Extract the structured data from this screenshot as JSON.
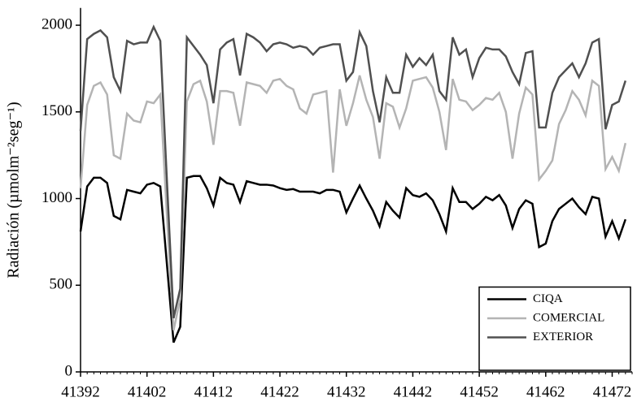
{
  "chart_data": {
    "type": "line",
    "y_label": "Radiación (µmolm⁻²seg⁻¹)",
    "x": [
      41392,
      41393,
      41394,
      41395,
      41396,
      41397,
      41398,
      41399,
      41400,
      41401,
      41402,
      41403,
      41404,
      41405,
      41406,
      41407,
      41408,
      41409,
      41410,
      41411,
      41412,
      41413,
      41414,
      41415,
      41416,
      41417,
      41418,
      41419,
      41420,
      41421,
      41422,
      41423,
      41424,
      41425,
      41426,
      41427,
      41428,
      41429,
      41430,
      41431,
      41432,
      41433,
      41434,
      41435,
      41436,
      41437,
      41438,
      41439,
      41440,
      41441,
      41442,
      41443,
      41444,
      41445,
      41446,
      41447,
      41448,
      41449,
      41450,
      41451,
      41452,
      41453,
      41454,
      41455,
      41456,
      41457,
      41458,
      41459,
      41460,
      41461,
      41462,
      41463,
      41464,
      41465,
      41466,
      41467,
      41468,
      41469,
      41470,
      41471,
      41472,
      41473,
      41474
    ],
    "series": [
      {
        "name": "CIQA",
        "color": "#000000",
        "values": [
          810,
          1070,
          1120,
          1120,
          1090,
          900,
          880,
          1050,
          1040,
          1030,
          1080,
          1090,
          1070,
          620,
          170,
          260,
          1120,
          1130,
          1130,
          1060,
          960,
          1120,
          1090,
          1080,
          980,
          1100,
          1090,
          1080,
          1080,
          1075,
          1060,
          1050,
          1055,
          1040,
          1040,
          1040,
          1030,
          1050,
          1050,
          1040,
          920,
          1000,
          1075,
          1000,
          930,
          840,
          980,
          930,
          890,
          1060,
          1020,
          1010,
          1030,
          990,
          910,
          810,
          1060,
          980,
          980,
          940,
          970,
          1010,
          990,
          1020,
          960,
          830,
          940,
          990,
          970,
          720,
          740,
          870,
          940,
          970,
          1000,
          950,
          910,
          1010,
          1000,
          780,
          870,
          770,
          880
        ]
      },
      {
        "name": "COMERCIAL",
        "color": "#b4b4b4",
        "values": [
          1060,
          1540,
          1650,
          1670,
          1600,
          1250,
          1230,
          1490,
          1450,
          1440,
          1560,
          1550,
          1600,
          900,
          240,
          420,
          1560,
          1660,
          1680,
          1560,
          1310,
          1620,
          1620,
          1610,
          1420,
          1670,
          1660,
          1650,
          1610,
          1680,
          1690,
          1650,
          1630,
          1520,
          1490,
          1600,
          1610,
          1620,
          1150,
          1630,
          1420,
          1550,
          1710,
          1570,
          1470,
          1230,
          1550,
          1530,
          1410,
          1520,
          1680,
          1690,
          1700,
          1640,
          1500,
          1280,
          1690,
          1570,
          1560,
          1510,
          1540,
          1580,
          1570,
          1610,
          1500,
          1230,
          1490,
          1640,
          1600,
          1110,
          1160,
          1220,
          1430,
          1510,
          1620,
          1570,
          1480,
          1680,
          1650,
          1170,
          1240,
          1160,
          1320
        ]
      },
      {
        "name": "EXTERIOR",
        "color": "#505050",
        "values": [
          1390,
          1920,
          1950,
          1970,
          1930,
          1700,
          1620,
          1910,
          1890,
          1900,
          1900,
          1990,
          1910,
          1100,
          310,
          480,
          1930,
          1880,
          1830,
          1770,
          1550,
          1860,
          1900,
          1920,
          1710,
          1950,
          1930,
          1900,
          1850,
          1890,
          1900,
          1890,
          1870,
          1880,
          1870,
          1830,
          1870,
          1880,
          1890,
          1890,
          1680,
          1730,
          1960,
          1880,
          1620,
          1440,
          1700,
          1610,
          1610,
          1830,
          1760,
          1810,
          1770,
          1830,
          1620,
          1570,
          1930,
          1830,
          1860,
          1700,
          1810,
          1870,
          1860,
          1860,
          1820,
          1730,
          1660,
          1840,
          1850,
          1410,
          1410,
          1610,
          1700,
          1740,
          1780,
          1700,
          1780,
          1900,
          1920,
          1400,
          1540,
          1560,
          1680
        ]
      }
    ],
    "xlim": [
      41392,
      41475
    ],
    "xticks": [
      41392,
      41402,
      41412,
      41422,
      41432,
      41442,
      41452,
      41462,
      41472
    ],
    "ylim": [
      0,
      2100
    ],
    "yticks": [
      0,
      500,
      1000,
      1500,
      2000
    ],
    "grid": false,
    "legend_position": "lower right"
  }
}
